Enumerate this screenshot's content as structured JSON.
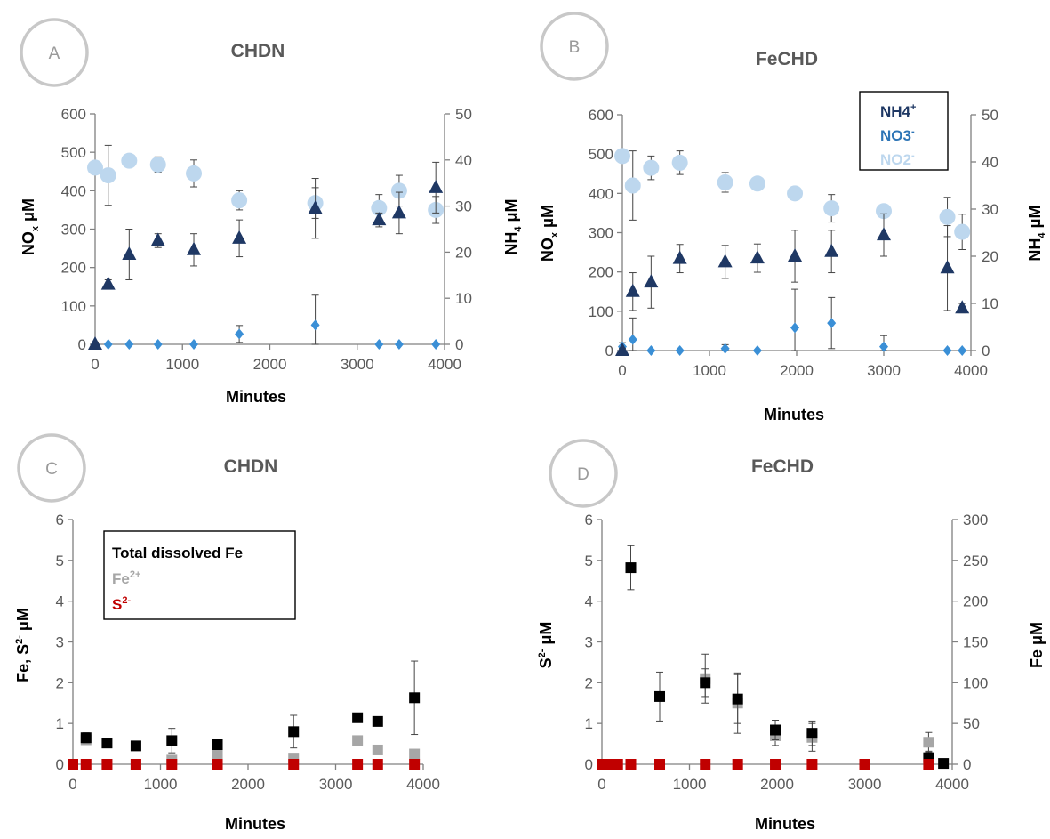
{
  "panels": [
    {
      "badge": "A",
      "title": "CHDN",
      "xlabel": "Minutes",
      "ylabel_left": "NOx μM",
      "ylabel_right": "NH4 μM",
      "legend": null
    },
    {
      "badge": "B",
      "title": "FeCHD",
      "xlabel": "Minutes",
      "ylabel_left": "NOx μM",
      "ylabel_right": "NH4 μM",
      "legend": [
        {
          "label": "NH4",
          "sup": "+",
          "color": "#1f3864"
        },
        {
          "label": "NO3",
          "sup": "-",
          "color": "#2e75b6"
        },
        {
          "label": "NO2",
          "sup": "-",
          "color": "#bdd7ee"
        }
      ]
    },
    {
      "badge": "C",
      "title": "CHDN",
      "xlabel": "Minutes",
      "ylabel_left": "Fe, S2- μM",
      "ylabel_right": "",
      "legend": [
        {
          "label": "Total dissolved Fe",
          "sup": "",
          "color": "#000000"
        },
        {
          "label": "Fe",
          "sup": "2+",
          "color": "#a6a6a6"
        },
        {
          "label": "S",
          "sup": "2-",
          "color": "#c00000"
        }
      ]
    },
    {
      "badge": "D",
      "title": "FeCHD",
      "xlabel": "Minutes",
      "ylabel_left": "S2- μM",
      "ylabel_right": "Fe μM",
      "legend": null
    }
  ],
  "colors": {
    "nh4": "#1f3864",
    "no3": "#3a8fd6",
    "no2": "#bdd7ee",
    "total_fe": "#000000",
    "fe2": "#a6a6a6",
    "s2": "#c00000"
  },
  "chart_data": [
    {
      "type": "scatter",
      "xlim": [
        0,
        4000
      ],
      "xticks": [
        0,
        1000,
        2000,
        3000,
        4000
      ],
      "ylim_left": [
        0,
        600
      ],
      "yticks_left": [
        0,
        100,
        200,
        300,
        400,
        500,
        600
      ],
      "ylim_right": [
        0,
        50
      ],
      "yticks_right": [
        0,
        10,
        20,
        30,
        40,
        50
      ],
      "series": [
        {
          "key": "no2",
          "axis": "left",
          "marker": "circle",
          "x": [
            0,
            150,
            390,
            720,
            1130,
            1650,
            2520,
            3250,
            3480,
            3900
          ],
          "y": [
            460,
            440,
            478,
            468,
            445,
            375,
            368,
            355,
            400,
            350
          ],
          "err": [
            10,
            78,
            5,
            20,
            35,
            25,
            40,
            35,
            40,
            35
          ]
        },
        {
          "key": "no3",
          "axis": "left",
          "marker": "diamond",
          "x": [
            0,
            150,
            390,
            720,
            1130,
            1650,
            2520,
            3250,
            3480,
            3900
          ],
          "y": [
            0,
            0,
            0,
            0,
            0,
            27,
            50,
            0,
            0,
            0
          ],
          "err": [
            0,
            0,
            0,
            0,
            0,
            22,
            78,
            0,
            0,
            0
          ]
        },
        {
          "key": "nh4",
          "axis": "right",
          "marker": "triangle",
          "x": [
            0,
            150,
            390,
            720,
            1130,
            1650,
            2520,
            3250,
            3480,
            3900
          ],
          "y": [
            0,
            13,
            19.5,
            22.5,
            20.5,
            23,
            29.5,
            27,
            28.5,
            34
          ],
          "err": [
            0.5,
            1,
            5.5,
            1.5,
            3.5,
            4,
            6.5,
            1.5,
            4.5,
            5.5
          ]
        }
      ]
    },
    {
      "type": "scatter",
      "xlim": [
        0,
        4000
      ],
      "xticks": [
        0,
        1000,
        2000,
        3000,
        4000
      ],
      "ylim_left": [
        0,
        600
      ],
      "yticks_left": [
        0,
        100,
        200,
        300,
        400,
        500,
        600
      ],
      "ylim_right": [
        0,
        50
      ],
      "yticks_right": [
        0,
        10,
        20,
        30,
        40,
        50
      ],
      "series": [
        {
          "key": "no2",
          "axis": "left",
          "marker": "circle",
          "x": [
            0,
            120,
            330,
            660,
            1180,
            1550,
            1980,
            2400,
            3000,
            3730,
            3900
          ],
          "y": [
            495,
            420,
            465,
            478,
            428,
            425,
            400,
            362,
            355,
            340,
            302
          ],
          "err": [
            10,
            88,
            30,
            30,
            25,
            10,
            10,
            35,
            10,
            50,
            45
          ]
        },
        {
          "key": "no3",
          "axis": "left",
          "marker": "diamond",
          "x": [
            0,
            120,
            330,
            660,
            1180,
            1550,
            1980,
            2400,
            3000,
            3730,
            3900
          ],
          "y": [
            10,
            28,
            0,
            0,
            5,
            0,
            58,
            70,
            10,
            0,
            0
          ],
          "err": [
            10,
            55,
            0,
            0,
            10,
            0,
            98,
            65,
            28,
            0,
            0
          ]
        },
        {
          "key": "nh4",
          "axis": "right",
          "marker": "triangle",
          "x": [
            0,
            120,
            330,
            660,
            1180,
            1550,
            1980,
            2400,
            3000,
            3730,
            3900
          ],
          "y": [
            0,
            12.5,
            14.5,
            19.5,
            18.8,
            19.6,
            20,
            21,
            24.5,
            17.5,
            9
          ],
          "err": [
            0.5,
            4,
            5.5,
            3,
            3.5,
            3,
            5.5,
            4.5,
            4.5,
            9,
            1
          ]
        }
      ]
    },
    {
      "type": "scatter",
      "xlim": [
        0,
        4000
      ],
      "xticks": [
        0,
        1000,
        2000,
        3000,
        4000
      ],
      "ylim_left": [
        0,
        6
      ],
      "yticks_left": [
        0,
        1,
        2,
        3,
        4,
        5,
        6
      ],
      "series": [
        {
          "key": "fe2",
          "axis": "left",
          "marker": "square",
          "x": [
            0,
            150,
            390,
            720,
            1130,
            1650,
            2520,
            3250,
            3480,
            3900
          ],
          "y": [
            0,
            0.6,
            0,
            0,
            0.1,
            0.25,
            0.15,
            0.58,
            0.35,
            0.25
          ],
          "err": [
            0,
            0.08,
            0,
            0,
            0.05,
            0.08,
            0.1,
            0.1,
            0.08,
            0.08
          ]
        },
        {
          "key": "total_fe",
          "axis": "left",
          "marker": "square",
          "x": [
            150,
            390,
            720,
            1130,
            1650,
            2520,
            3250,
            3480,
            3900
          ],
          "y": [
            0.65,
            0.52,
            0.45,
            0.58,
            0.48,
            0.8,
            1.14,
            1.05,
            1.63
          ],
          "err": [
            0.12,
            0.05,
            0.05,
            0.3,
            0.05,
            0.4,
            0.05,
            0.05,
            0.9
          ]
        },
        {
          "key": "s2",
          "axis": "left",
          "marker": "square",
          "x": [
            0,
            150,
            390,
            720,
            1130,
            1650,
            2520,
            3250,
            3480,
            3900
          ],
          "y": [
            0,
            0,
            0,
            0,
            0,
            0,
            0,
            0,
            0,
            0
          ],
          "err": [
            0,
            0,
            0,
            0,
            0,
            0,
            0,
            0,
            0,
            0
          ]
        }
      ]
    },
    {
      "type": "scatter",
      "xlim": [
        0,
        4000
      ],
      "xticks": [
        0,
        1000,
        2000,
        3000,
        4000
      ],
      "ylim_left": [
        0,
        6
      ],
      "yticks_left": [
        0,
        1,
        2,
        3,
        4,
        5,
        6
      ],
      "ylim_right": [
        0,
        300
      ],
      "yticks_right": [
        0,
        50,
        100,
        150,
        200,
        250,
        300
      ],
      "series": [
        {
          "key": "fe2",
          "axis": "right",
          "marker": "square",
          "x": [
            1180,
            1550,
            1980,
            2400,
            3730
          ],
          "y": [
            105,
            75,
            35,
            33,
            27
          ],
          "err": [
            30,
            37,
            12,
            17,
            12
          ]
        },
        {
          "key": "total_fe",
          "axis": "right",
          "marker": "square",
          "x": [
            330,
            660,
            1180,
            1550,
            1980,
            2400,
            3730,
            3900
          ],
          "y": [
            241,
            83,
            100,
            80,
            42,
            38,
            8,
            1
          ],
          "err": [
            27,
            30,
            17,
            30,
            12,
            15,
            8,
            1
          ]
        },
        {
          "key": "s2",
          "axis": "left",
          "marker": "square",
          "x": [
            0,
            60,
            120,
            180,
            330,
            660,
            1180,
            1550,
            1980,
            2400,
            3000,
            3730
          ],
          "y": [
            0,
            0,
            0,
            0,
            0,
            0,
            0,
            0,
            0,
            0,
            0,
            0
          ],
          "err": [
            0,
            0,
            0,
            0,
            0,
            0,
            0,
            0,
            0,
            0,
            0,
            0
          ]
        }
      ]
    }
  ]
}
